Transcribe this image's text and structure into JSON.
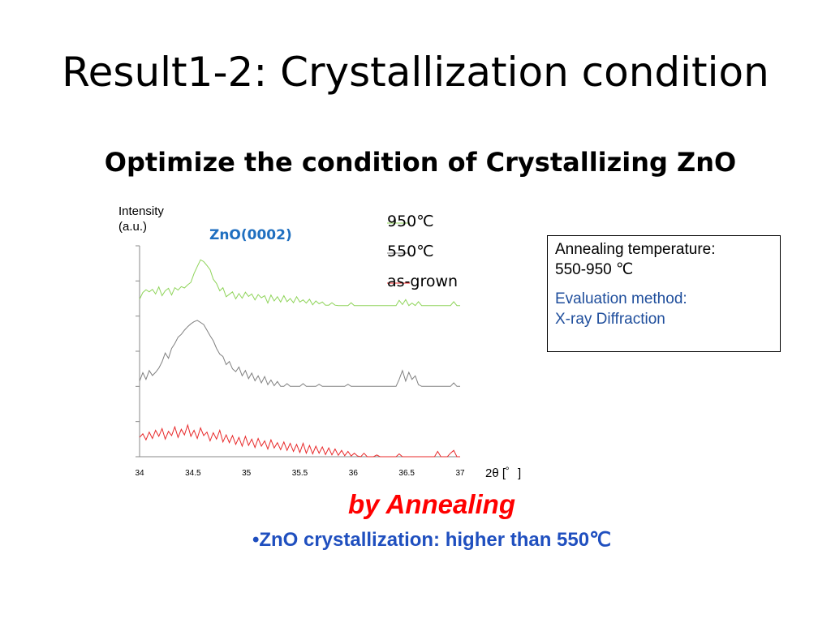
{
  "slide": {
    "title": "Result1-2: Crystallization condition",
    "subtitle": "Optimize the condition of Crystallizing ZnO",
    "annealing_text": "by Annealing",
    "bullet_text": "•ZnO crystallization: higher than 550℃"
  },
  "info_box": {
    "line1": "Annealing temperature:",
    "line2": "550-950 ℃",
    "method_line1": "Evaluation method:",
    "method_line2": "X-ray Diffraction"
  },
  "chart_data": {
    "type": "line",
    "title": "",
    "xlabel": "2θ [゜]",
    "ylabel_line1": "Intensity",
    "ylabel_line2": "(a.u.)",
    "annotation": "ZnO(0002)",
    "xlim": [
      34,
      37
    ],
    "ylim": [
      0,
      6
    ],
    "y_tick_count": 6,
    "x_ticks": [
      "34",
      "34.5",
      "35",
      "35.5",
      "36",
      "36.5",
      "37"
    ],
    "legend_placement": "top-right",
    "grid": false,
    "series": [
      {
        "name": "950℃",
        "color": "#8fd45a",
        "points": [
          [
            34.0,
            4.48
          ],
          [
            34.03,
            4.67
          ],
          [
            34.06,
            4.75
          ],
          [
            34.09,
            4.69
          ],
          [
            34.12,
            4.76
          ],
          [
            34.15,
            4.63
          ],
          [
            34.18,
            4.83
          ],
          [
            34.21,
            4.58
          ],
          [
            34.24,
            4.72
          ],
          [
            34.27,
            4.79
          ],
          [
            34.3,
            4.6
          ],
          [
            34.33,
            4.81
          ],
          [
            34.36,
            4.74
          ],
          [
            34.39,
            4.84
          ],
          [
            34.42,
            4.8
          ],
          [
            34.45,
            4.89
          ],
          [
            34.48,
            4.96
          ],
          [
            34.51,
            5.21
          ],
          [
            34.54,
            5.41
          ],
          [
            34.57,
            5.6
          ],
          [
            34.6,
            5.55
          ],
          [
            34.63,
            5.44
          ],
          [
            34.66,
            5.32
          ],
          [
            34.69,
            5.05
          ],
          [
            34.72,
            4.93
          ],
          [
            34.75,
            4.72
          ],
          [
            34.78,
            4.81
          ],
          [
            34.81,
            4.55
          ],
          [
            34.84,
            4.62
          ],
          [
            34.87,
            4.69
          ],
          [
            34.9,
            4.49
          ],
          [
            34.93,
            4.64
          ],
          [
            34.96,
            4.51
          ],
          [
            34.99,
            4.68
          ],
          [
            35.02,
            4.56
          ],
          [
            35.05,
            4.63
          ],
          [
            35.08,
            4.46
          ],
          [
            35.11,
            4.61
          ],
          [
            35.14,
            4.52
          ],
          [
            35.17,
            4.58
          ],
          [
            35.2,
            4.37
          ],
          [
            35.23,
            4.6
          ],
          [
            35.26,
            4.43
          ],
          [
            35.29,
            4.55
          ],
          [
            35.32,
            4.4
          ],
          [
            35.35,
            4.58
          ],
          [
            35.38,
            4.41
          ],
          [
            35.41,
            4.5
          ],
          [
            35.44,
            4.38
          ],
          [
            35.47,
            4.55
          ],
          [
            35.5,
            4.4
          ],
          [
            35.53,
            4.46
          ],
          [
            35.56,
            4.37
          ],
          [
            35.59,
            4.48
          ],
          [
            35.62,
            4.32
          ],
          [
            35.65,
            4.43
          ],
          [
            35.68,
            4.35
          ],
          [
            35.71,
            4.4
          ],
          [
            35.74,
            4.31
          ],
          [
            35.77,
            4.31
          ],
          [
            35.8,
            4.38
          ],
          [
            35.83,
            4.31
          ],
          [
            35.86,
            4.3
          ],
          [
            35.89,
            4.3
          ],
          [
            35.92,
            4.3
          ],
          [
            35.95,
            4.3
          ],
          [
            35.98,
            4.38
          ],
          [
            36.01,
            4.3
          ],
          [
            36.04,
            4.3
          ],
          [
            36.07,
            4.3
          ],
          [
            36.1,
            4.3
          ],
          [
            36.13,
            4.3
          ],
          [
            36.16,
            4.3
          ],
          [
            36.19,
            4.3
          ],
          [
            36.22,
            4.3
          ],
          [
            36.25,
            4.3
          ],
          [
            36.28,
            4.3
          ],
          [
            36.31,
            4.3
          ],
          [
            36.34,
            4.3
          ],
          [
            36.37,
            4.3
          ],
          [
            36.4,
            4.3
          ],
          [
            36.43,
            4.45
          ],
          [
            36.46,
            4.33
          ],
          [
            36.49,
            4.47
          ],
          [
            36.52,
            4.3
          ],
          [
            36.55,
            4.37
          ],
          [
            36.58,
            4.3
          ],
          [
            36.61,
            4.41
          ],
          [
            36.64,
            4.3
          ],
          [
            36.67,
            4.3
          ],
          [
            36.7,
            4.3
          ],
          [
            36.73,
            4.3
          ],
          [
            36.76,
            4.3
          ],
          [
            36.79,
            4.3
          ],
          [
            36.82,
            4.3
          ],
          [
            36.85,
            4.3
          ],
          [
            36.88,
            4.3
          ],
          [
            36.91,
            4.3
          ],
          [
            36.94,
            4.41
          ],
          [
            36.97,
            4.3
          ],
          [
            37.0,
            4.3
          ]
        ]
      },
      {
        "name": "550℃",
        "color": "#808080",
        "points": [
          [
            34.0,
            2.15
          ],
          [
            34.03,
            2.39
          ],
          [
            34.06,
            2.2
          ],
          [
            34.09,
            2.45
          ],
          [
            34.12,
            2.31
          ],
          [
            34.15,
            2.4
          ],
          [
            34.18,
            2.52
          ],
          [
            34.21,
            2.7
          ],
          [
            34.24,
            2.95
          ],
          [
            34.27,
            2.8
          ],
          [
            34.3,
            3.08
          ],
          [
            34.33,
            3.22
          ],
          [
            34.36,
            3.4
          ],
          [
            34.39,
            3.48
          ],
          [
            34.42,
            3.6
          ],
          [
            34.45,
            3.7
          ],
          [
            34.48,
            3.78
          ],
          [
            34.51,
            3.84
          ],
          [
            34.54,
            3.88
          ],
          [
            34.57,
            3.82
          ],
          [
            34.6,
            3.76
          ],
          [
            34.63,
            3.6
          ],
          [
            34.66,
            3.44
          ],
          [
            34.69,
            3.3
          ],
          [
            34.72,
            3.08
          ],
          [
            34.75,
            2.92
          ],
          [
            34.78,
            2.85
          ],
          [
            34.81,
            2.62
          ],
          [
            34.84,
            2.71
          ],
          [
            34.87,
            2.5
          ],
          [
            34.9,
            2.42
          ],
          [
            34.93,
            2.55
          ],
          [
            34.96,
            2.3
          ],
          [
            34.99,
            2.45
          ],
          [
            35.02,
            2.22
          ],
          [
            35.05,
            2.38
          ],
          [
            35.08,
            2.16
          ],
          [
            35.11,
            2.3
          ],
          [
            35.14,
            2.1
          ],
          [
            35.17,
            2.28
          ],
          [
            35.2,
            2.05
          ],
          [
            35.23,
            2.18
          ],
          [
            35.26,
            2.02
          ],
          [
            35.29,
            2.14
          ],
          [
            35.32,
            2.0
          ],
          [
            35.35,
            2.0
          ],
          [
            35.38,
            2.08
          ],
          [
            35.41,
            2.0
          ],
          [
            35.44,
            2.0
          ],
          [
            35.47,
            2.0
          ],
          [
            35.5,
            2.0
          ],
          [
            35.53,
            2.08
          ],
          [
            35.56,
            2.0
          ],
          [
            35.59,
            2.0
          ],
          [
            35.62,
            2.0
          ],
          [
            35.65,
            2.0
          ],
          [
            35.68,
            2.06
          ],
          [
            35.71,
            2.0
          ],
          [
            35.74,
            2.0
          ],
          [
            35.77,
            2.0
          ],
          [
            35.8,
            2.0
          ],
          [
            35.83,
            2.0
          ],
          [
            35.86,
            2.0
          ],
          [
            35.89,
            2.0
          ],
          [
            35.92,
            2.0
          ],
          [
            35.95,
            2.06
          ],
          [
            35.98,
            2.0
          ],
          [
            36.01,
            2.0
          ],
          [
            36.04,
            2.0
          ],
          [
            36.07,
            2.0
          ],
          [
            36.1,
            2.0
          ],
          [
            36.13,
            2.0
          ],
          [
            36.16,
            2.0
          ],
          [
            36.19,
            2.0
          ],
          [
            36.22,
            2.0
          ],
          [
            36.25,
            2.0
          ],
          [
            36.28,
            2.0
          ],
          [
            36.31,
            2.0
          ],
          [
            36.34,
            2.0
          ],
          [
            36.37,
            2.0
          ],
          [
            36.4,
            2.0
          ],
          [
            36.43,
            2.2
          ],
          [
            36.46,
            2.45
          ],
          [
            36.49,
            2.15
          ],
          [
            36.52,
            2.4
          ],
          [
            36.55,
            2.2
          ],
          [
            36.58,
            2.3
          ],
          [
            36.61,
            2.05
          ],
          [
            36.64,
            2.0
          ],
          [
            36.67,
            2.0
          ],
          [
            36.7,
            2.0
          ],
          [
            36.73,
            2.0
          ],
          [
            36.76,
            2.0
          ],
          [
            36.79,
            2.0
          ],
          [
            36.82,
            2.0
          ],
          [
            36.85,
            2.0
          ],
          [
            36.88,
            2.0
          ],
          [
            36.91,
            2.0
          ],
          [
            36.94,
            2.1
          ],
          [
            36.97,
            2.0
          ],
          [
            37.0,
            2.0
          ]
        ]
      },
      {
        "name": "as-grown",
        "color": "#e8292a",
        "points": [
          [
            34.0,
            0.55
          ],
          [
            34.03,
            0.65
          ],
          [
            34.06,
            0.48
          ],
          [
            34.09,
            0.7
          ],
          [
            34.12,
            0.52
          ],
          [
            34.15,
            0.75
          ],
          [
            34.18,
            0.58
          ],
          [
            34.21,
            0.8
          ],
          [
            34.24,
            0.5
          ],
          [
            34.27,
            0.72
          ],
          [
            34.3,
            0.6
          ],
          [
            34.33,
            0.85
          ],
          [
            34.36,
            0.55
          ],
          [
            34.39,
            0.78
          ],
          [
            34.42,
            0.62
          ],
          [
            34.45,
            0.9
          ],
          [
            34.48,
            0.58
          ],
          [
            34.51,
            0.75
          ],
          [
            34.54,
            0.52
          ],
          [
            34.57,
            0.82
          ],
          [
            34.6,
            0.6
          ],
          [
            34.63,
            0.7
          ],
          [
            34.66,
            0.45
          ],
          [
            34.69,
            0.68
          ],
          [
            34.72,
            0.5
          ],
          [
            34.75,
            0.75
          ],
          [
            34.78,
            0.42
          ],
          [
            34.81,
            0.62
          ],
          [
            34.84,
            0.4
          ],
          [
            34.87,
            0.6
          ],
          [
            34.9,
            0.35
          ],
          [
            34.93,
            0.55
          ],
          [
            34.96,
            0.3
          ],
          [
            34.99,
            0.58
          ],
          [
            35.02,
            0.32
          ],
          [
            35.05,
            0.5
          ],
          [
            35.08,
            0.26
          ],
          [
            35.11,
            0.52
          ],
          [
            35.14,
            0.3
          ],
          [
            35.17,
            0.45
          ],
          [
            35.2,
            0.22
          ],
          [
            35.23,
            0.48
          ],
          [
            35.26,
            0.25
          ],
          [
            35.29,
            0.4
          ],
          [
            35.32,
            0.2
          ],
          [
            35.35,
            0.42
          ],
          [
            35.38,
            0.18
          ],
          [
            35.41,
            0.38
          ],
          [
            35.44,
            0.15
          ],
          [
            35.47,
            0.35
          ],
          [
            35.5,
            0.12
          ],
          [
            35.53,
            0.38
          ],
          [
            35.56,
            0.1
          ],
          [
            35.59,
            0.32
          ],
          [
            35.62,
            0.08
          ],
          [
            35.65,
            0.3
          ],
          [
            35.68,
            0.1
          ],
          [
            35.71,
            0.28
          ],
          [
            35.74,
            0.06
          ],
          [
            35.77,
            0.25
          ],
          [
            35.8,
            0.05
          ],
          [
            35.83,
            0.22
          ],
          [
            35.86,
            0.04
          ],
          [
            35.89,
            0.18
          ],
          [
            35.92,
            0.03
          ],
          [
            35.95,
            0.15
          ],
          [
            35.98,
            0.02
          ],
          [
            36.01,
            0.1
          ],
          [
            36.04,
            0.02
          ],
          [
            36.07,
            0.0
          ],
          [
            36.1,
            0.1
          ],
          [
            36.13,
            0.0
          ],
          [
            36.16,
            0.0
          ],
          [
            36.19,
            0.0
          ],
          [
            36.22,
            0.05
          ],
          [
            36.25,
            0.0
          ],
          [
            36.28,
            0.0
          ],
          [
            36.31,
            0.0
          ],
          [
            36.34,
            0.0
          ],
          [
            36.37,
            0.0
          ],
          [
            36.4,
            0.0
          ],
          [
            36.43,
            0.08
          ],
          [
            36.46,
            0.0
          ],
          [
            36.49,
            0.0
          ],
          [
            36.52,
            0.0
          ],
          [
            36.55,
            0.0
          ],
          [
            36.58,
            0.0
          ],
          [
            36.61,
            0.0
          ],
          [
            36.64,
            0.0
          ],
          [
            36.67,
            0.0
          ],
          [
            36.7,
            0.0
          ],
          [
            36.73,
            0.0
          ],
          [
            36.76,
            0.0
          ],
          [
            36.79,
            0.15
          ],
          [
            36.82,
            0.0
          ],
          [
            36.85,
            0.0
          ],
          [
            36.88,
            0.0
          ],
          [
            36.91,
            0.1
          ],
          [
            36.94,
            0.18
          ],
          [
            36.97,
            0.0
          ],
          [
            37.0,
            0.0
          ]
        ]
      }
    ]
  }
}
